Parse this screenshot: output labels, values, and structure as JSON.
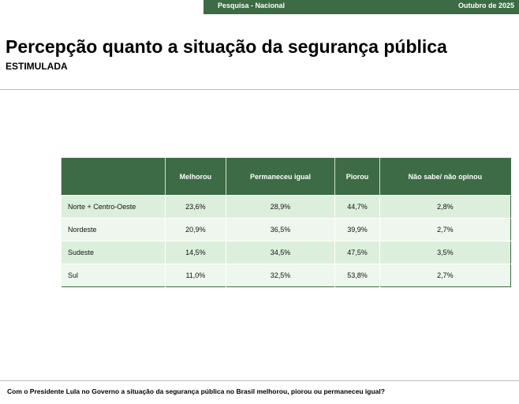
{
  "header": {
    "survey": "Pesquisa - Nacional",
    "date": "Outubro de 2025",
    "title": "Percepção quanto a situação da segurança pública",
    "subtitle": "ESTIMULADA"
  },
  "table": {
    "columns": [
      "",
      "Melhorou",
      "Permaneceu igual",
      "Piorou",
      "Não sabe/ não opinou"
    ],
    "rows": [
      [
        "Norte + Centro-Oeste",
        "23,6%",
        "28,9%",
        "44,7%",
        "2,8%"
      ],
      [
        "Nordeste",
        "20,9%",
        "36,5%",
        "39,9%",
        "2,7%"
      ],
      [
        "Sudeste",
        "14,5%",
        "34,5%",
        "47,5%",
        "3,5%"
      ],
      [
        "Sul",
        "11,0%",
        "32,5%",
        "53,8%",
        "2,7%"
      ]
    ]
  },
  "footer": {
    "question": "Com o Presidente Lula no Governo a situação da segurança pública no Brasil melhorou, piorou ou permaneceu igual?"
  }
}
